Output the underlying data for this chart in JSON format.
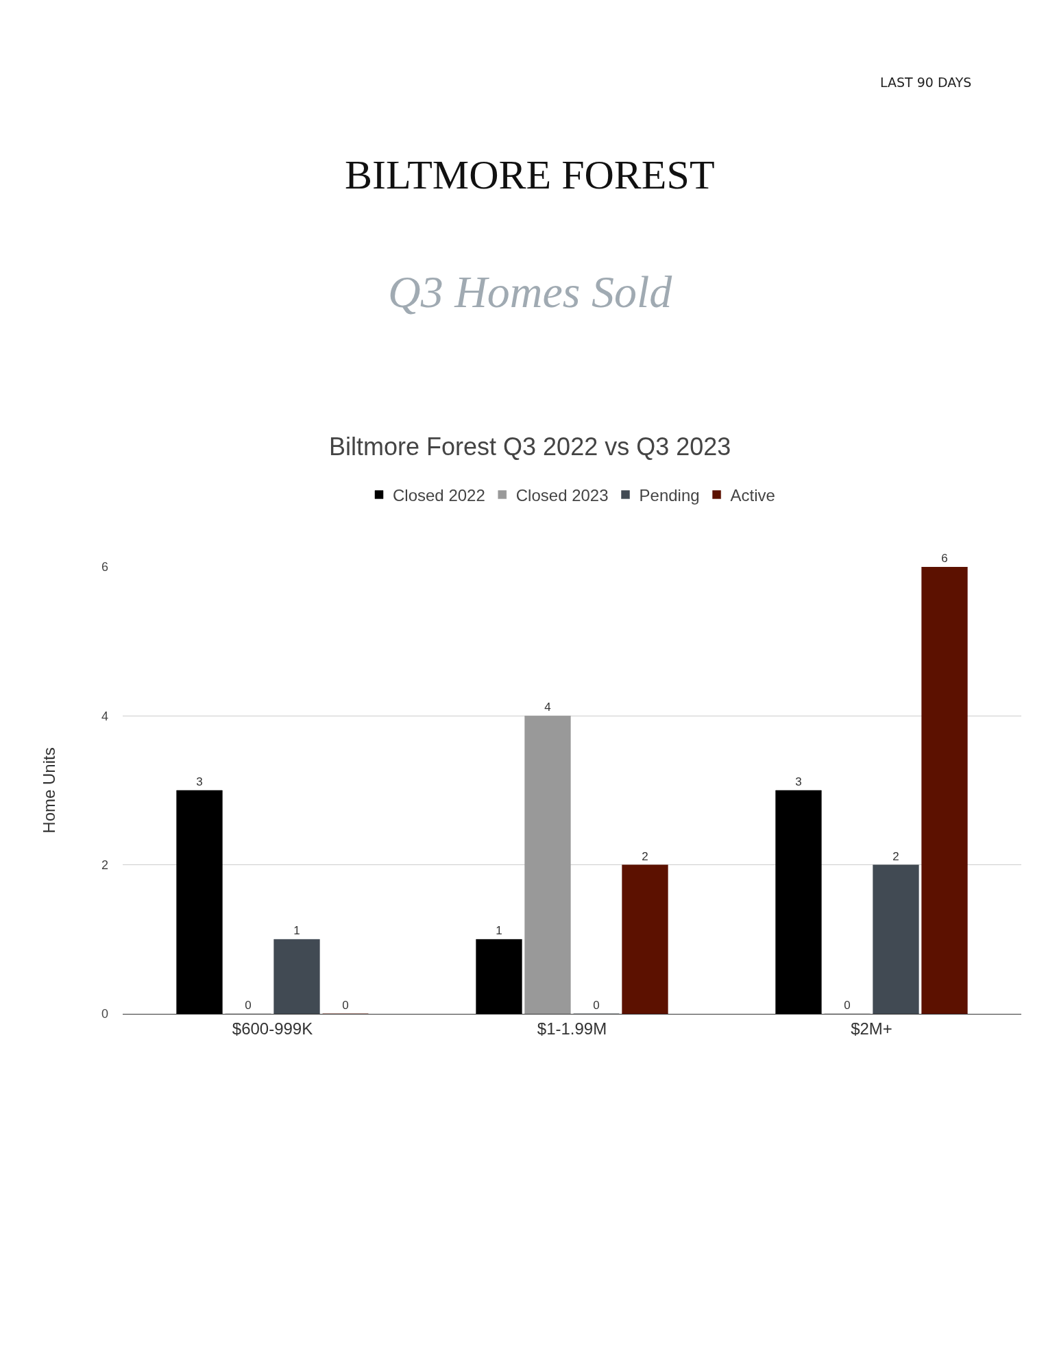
{
  "chart_data": {
    "type": "bar",
    "title": "BILTMORE FOREST",
    "subtitle": "Q3 Homes Sold",
    "annotations": [
      "LAST 90 DAYS",
      "Biltmore Forest Q3 2022 vs Q3 2023"
    ],
    "ylabel": "Home Units",
    "categories": [
      "$600-999K",
      "$1-1.99M",
      "$2M+"
    ],
    "series": [
      {
        "name": "Closed 2022",
        "color": "#000000",
        "values": [
          3,
          1,
          3
        ]
      },
      {
        "name": "Closed 2023",
        "color": "#999999",
        "values": [
          0,
          4,
          0
        ]
      },
      {
        "name": "Pending",
        "color": "#414a53",
        "values": [
          1,
          0,
          2
        ]
      },
      {
        "name": "Active",
        "color": "#5c1100",
        "values": [
          0,
          2,
          6
        ]
      }
    ],
    "ylim": [
      0,
      6
    ],
    "yticks": [
      0,
      2,
      4,
      6
    ],
    "grid": "y",
    "legend": "top",
    "data_labels": true
  }
}
